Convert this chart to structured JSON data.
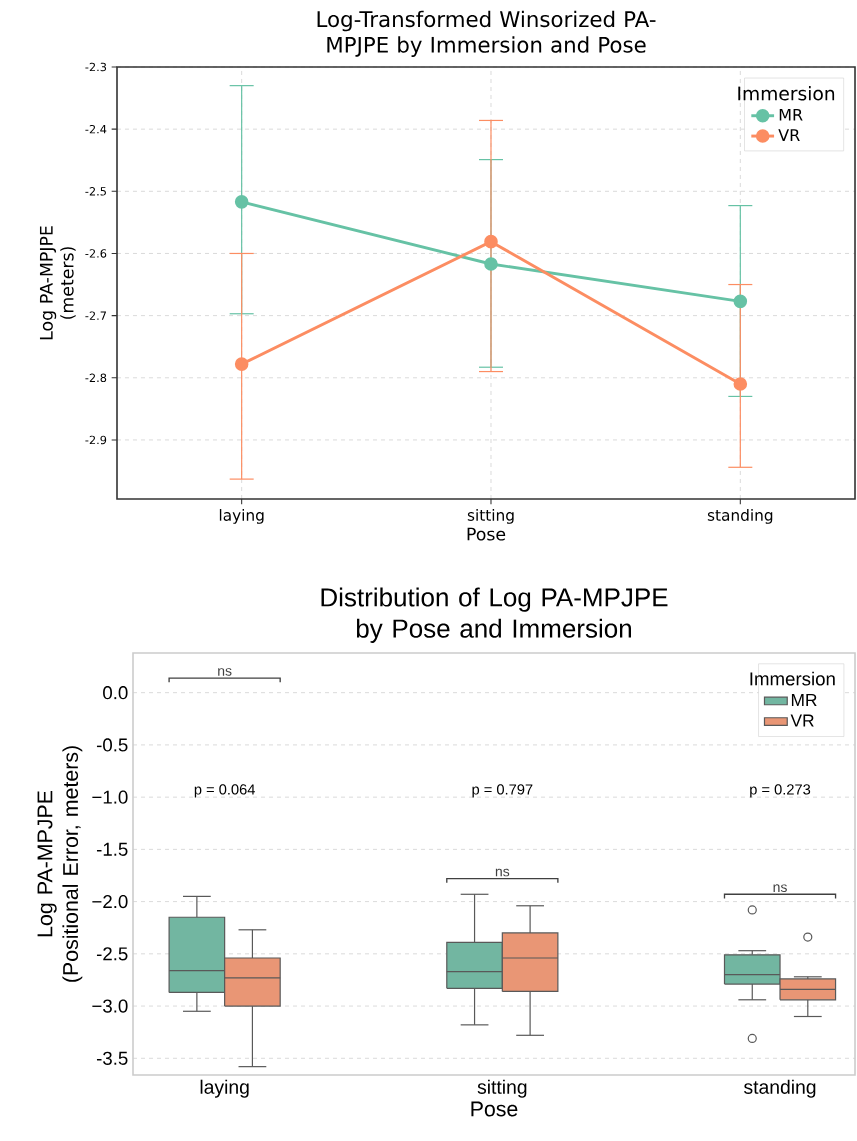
{
  "chart_data": [
    {
      "type": "line",
      "title": "Log-Transformed Winsorized PA-MPJPE by Immersion and Pose",
      "xlabel": "Pose",
      "ylabel": "Log PA-MPJPE (meters)",
      "legend_title": "Immersion",
      "categories": [
        "laying",
        "sitting",
        "standing"
      ],
      "series": [
        {
          "name": "MR",
          "color": "#66c2a5",
          "values": [
            -2.517,
            -2.617,
            -2.677
          ],
          "errors": [
            [
              -2.697,
              -2.33
            ],
            [
              -2.783,
              -2.449
            ],
            [
              -2.83,
              -2.523
            ]
          ]
        },
        {
          "name": "VR",
          "color": "#fc8d62",
          "values": [
            -2.778,
            -2.581,
            -2.81
          ],
          "errors": [
            [
              -2.963,
              -2.6
            ],
            [
              -2.79,
              -2.386
            ],
            [
              -2.944,
              -2.65
            ]
          ]
        }
      ],
      "ylim": [
        -2.995,
        -2.3
      ],
      "yticks": [
        -2.3,
        -2.4,
        -2.5,
        -2.6,
        -2.7,
        -2.8,
        -2.9
      ],
      "grid": true,
      "legend": "top right",
      "marker": "circle"
    },
    {
      "type": "box",
      "title": "Distribution of Log PA-MPJPE by Pose and Immersion",
      "xlabel": "Pose",
      "ylabel": "Log PA-MPJPE (Positional Error, meters)",
      "legend_title": "Immersion",
      "categories": [
        "laying",
        "sitting",
        "standing"
      ],
      "series": [
        {
          "name": "MR",
          "color": "#72b6a1",
          "boxes": [
            {
              "low": -3.05,
              "q1": -2.87,
              "median": -2.66,
              "q3": -2.15,
              "high": -1.95
            },
            {
              "low": -3.18,
              "q1": -2.83,
              "median": -2.67,
              "q3": -2.39,
              "high": -1.93
            },
            {
              "low": -2.94,
              "q1": -2.79,
              "median": -2.7,
              "q3": -2.51,
              "high": -2.47,
              "outliers": [
                -2.08,
                -3.31
              ]
            }
          ]
        },
        {
          "name": "VR",
          "color": "#e99675",
          "boxes": [
            {
              "low": -3.58,
              "q1": -3.0,
              "median": -2.73,
              "q3": -2.54,
              "high": -2.27
            },
            {
              "low": -3.28,
              "q1": -2.86,
              "median": -2.54,
              "q3": -2.3,
              "high": -2.04
            },
            {
              "low": -3.1,
              "q1": -2.94,
              "median": -2.84,
              "q3": -2.74,
              "high": -2.72,
              "outliers": [
                -2.34
              ]
            }
          ]
        }
      ],
      "ylim": [
        -3.66,
        0.38
      ],
      "yticks": [
        {
          "value": 0,
          "label": "0.0"
        },
        -0.5,
        {
          "value": -1,
          "label": "−1.0"
        },
        -1.5,
        {
          "value": -2,
          "label": "−2.0"
        },
        -2.5,
        {
          "value": -3,
          "label": "−3.0"
        },
        -3.5
      ],
      "grid": "y",
      "legend": "top right",
      "annotations": [
        "ns",
        "ns",
        "ns",
        "p = 0.064",
        "p = 0.797",
        "p = 0.273"
      ]
    }
  ]
}
